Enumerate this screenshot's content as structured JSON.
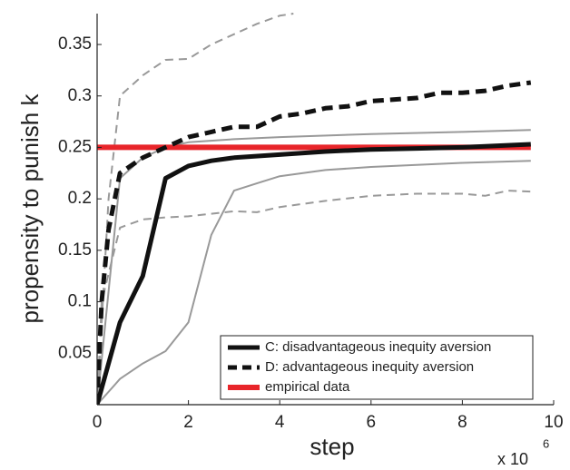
{
  "chart_data": {
    "type": "line",
    "x_label": "step",
    "y_label": "propensity to punish k",
    "x_multiplier": "x 10",
    "x_multiplier_exponent": "6",
    "xlim": [
      0,
      10
    ],
    "ylim": [
      0,
      0.38
    ],
    "xticks": [
      0,
      2,
      4,
      6,
      8,
      10
    ],
    "yticks": [
      0.05,
      0.1,
      0.15,
      0.2,
      0.25,
      0.3,
      0.35
    ],
    "legend": "lower right",
    "series": [
      {
        "color": "#999999",
        "dashed": false,
        "linewidth": 2,
        "x": [
          0,
          0.5,
          1,
          1.5,
          2,
          3,
          4,
          6,
          8,
          9.5
        ],
        "values": [
          0,
          0.22,
          0.24,
          0.25,
          0.255,
          0.258,
          0.26,
          0.263,
          0.265,
          0.267
        ]
      },
      {
        "color": "#999999",
        "dashed": false,
        "linewidth": 2,
        "x": [
          0,
          0.5,
          1,
          1.5,
          2,
          2.5,
          3,
          3.5,
          4,
          5,
          6,
          8,
          9.5
        ],
        "values": [
          0,
          0.025,
          0.04,
          0.052,
          0.08,
          0.165,
          0.208,
          0.215,
          0.222,
          0.228,
          0.231,
          0.235,
          0.237
        ]
      },
      {
        "color": "#999999",
        "dashed": true,
        "linewidth": 2,
        "x": [
          0,
          0.25,
          0.5,
          1,
          1.5,
          2,
          2.5,
          3,
          3.5,
          4,
          4.3
        ],
        "values": [
          0,
          0.2,
          0.3,
          0.32,
          0.335,
          0.336,
          0.35,
          0.36,
          0.37,
          0.378,
          0.38
        ]
      },
      {
        "color": "#999999",
        "dashed": true,
        "linewidth": 2,
        "x": [
          0,
          0.1,
          0.5,
          1,
          1.5,
          2,
          3,
          3.5,
          4,
          5,
          6,
          7,
          8,
          8.5,
          9,
          9.5
        ],
        "values": [
          0,
          0.1,
          0.172,
          0.18,
          0.182,
          0.183,
          0.188,
          0.187,
          0.192,
          0.198,
          0.203,
          0.205,
          0.205,
          0.203,
          0.208,
          0.207
        ]
      },
      {
        "name": "empirical data",
        "color": "#e8252a",
        "dashed": false,
        "linewidth": 6,
        "x": [
          0,
          9.5
        ],
        "values": [
          0.25,
          0.25
        ]
      },
      {
        "name": "C: disadvantageous inequity aversion",
        "color": "#111111",
        "dashed": false,
        "linewidth": 5,
        "x": [
          0,
          0.5,
          1,
          1.5,
          2,
          2.5,
          3,
          4,
          5,
          6,
          7,
          8,
          9.5
        ],
        "values": [
          0,
          0.08,
          0.125,
          0.22,
          0.232,
          0.237,
          0.24,
          0.243,
          0.246,
          0.248,
          0.249,
          0.25,
          0.253
        ]
      },
      {
        "name": "D: advantageous inequity aversion",
        "color": "#111111",
        "dashed": true,
        "linewidth": 5,
        "x": [
          0,
          0.1,
          0.25,
          0.5,
          1,
          1.5,
          2,
          2.5,
          3,
          3.5,
          4,
          4.5,
          5,
          5.5,
          6,
          7,
          7.5,
          8,
          8.5,
          9,
          9.5
        ],
        "values": [
          0,
          0.1,
          0.17,
          0.225,
          0.24,
          0.25,
          0.26,
          0.265,
          0.27,
          0.27,
          0.28,
          0.283,
          0.288,
          0.29,
          0.295,
          0.298,
          0.303,
          0.303,
          0.305,
          0.31,
          0.313
        ]
      }
    ]
  }
}
